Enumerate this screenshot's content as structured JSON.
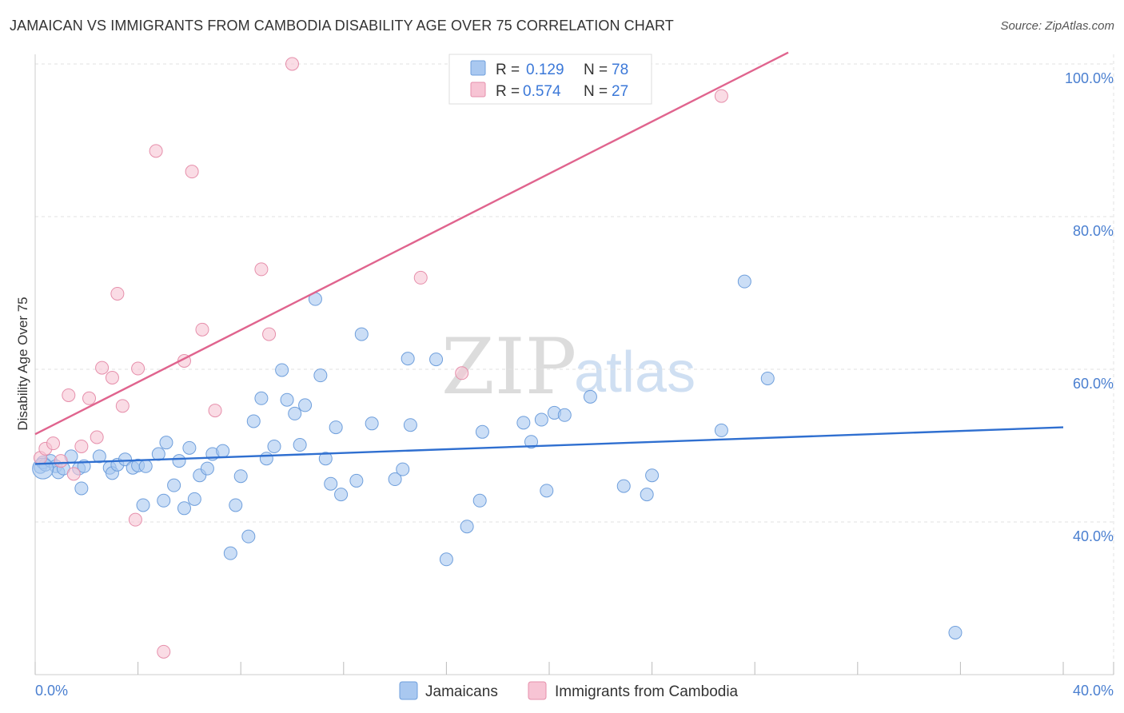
{
  "chart_data": {
    "type": "scatter",
    "title": "JAMAICAN VS IMMIGRANTS FROM CAMBODIA DISABILITY AGE OVER 75 CORRELATION CHART",
    "source": "Source: ZipAtlas.com",
    "xlabel": "",
    "ylabel": "Disability Age Over 75",
    "xlim": [
      0,
      40
    ],
    "ylim": [
      20,
      104
    ],
    "x_tick_labels": {
      "left": "0.0%",
      "right": "40.0%"
    },
    "y_ticks": [
      {
        "value": 40,
        "label": "40.0%"
      },
      {
        "value": 60,
        "label": "60.0%"
      },
      {
        "value": 80,
        "label": "80.0%"
      },
      {
        "value": 100,
        "label": "100.0%"
      }
    ],
    "grid": true,
    "watermark": {
      "part1": "ZIP",
      "part2": "atlas"
    },
    "legend": {
      "rows": [
        {
          "r_label": "R =",
          "r_value": "0.129",
          "n_label": "N =",
          "n_value": "78"
        },
        {
          "r_label": "R =",
          "r_value": "0.574",
          "n_label": "N =",
          "n_value": "27"
        }
      ]
    },
    "series": [
      {
        "name": "Jamaicans",
        "color": "#a9c8f0",
        "stroke": "#6f9fdc",
        "line_color": "#2f6fd0",
        "trend": {
          "x0": 0,
          "y0": 47.6,
          "x1": 40,
          "y1": 52.4
        },
        "points": [
          [
            0.2,
            47.2
          ],
          [
            0.3,
            47.8
          ],
          [
            0.4,
            47.5
          ],
          [
            0.6,
            48.0
          ],
          [
            0.8,
            47.3
          ],
          [
            0.9,
            46.5
          ],
          [
            1.1,
            47.0
          ],
          [
            1.4,
            48.6
          ],
          [
            1.7,
            47.0
          ],
          [
            1.9,
            47.3
          ],
          [
            1.8,
            44.4
          ],
          [
            2.5,
            48.6
          ],
          [
            2.9,
            47.1
          ],
          [
            3.0,
            46.4
          ],
          [
            3.2,
            47.5
          ],
          [
            3.5,
            48.2
          ],
          [
            3.8,
            47.1
          ],
          [
            4.0,
            47.4
          ],
          [
            4.3,
            47.3
          ],
          [
            4.2,
            42.2
          ],
          [
            4.8,
            48.9
          ],
          [
            5.0,
            42.8
          ],
          [
            5.1,
            50.4
          ],
          [
            5.4,
            44.8
          ],
          [
            5.6,
            48.0
          ],
          [
            5.8,
            41.8
          ],
          [
            6.0,
            49.7
          ],
          [
            6.2,
            43.0
          ],
          [
            6.4,
            46.1
          ],
          [
            6.7,
            47.0
          ],
          [
            6.9,
            48.9
          ],
          [
            7.3,
            49.3
          ],
          [
            7.6,
            35.9
          ],
          [
            7.8,
            42.2
          ],
          [
            8.0,
            46.0
          ],
          [
            8.3,
            38.1
          ],
          [
            8.5,
            53.2
          ],
          [
            8.8,
            56.2
          ],
          [
            9.0,
            48.3
          ],
          [
            9.3,
            49.9
          ],
          [
            9.6,
            59.9
          ],
          [
            9.8,
            56.0
          ],
          [
            10.1,
            54.2
          ],
          [
            10.3,
            50.1
          ],
          [
            10.5,
            55.3
          ],
          [
            10.9,
            69.2
          ],
          [
            11.1,
            59.2
          ],
          [
            11.3,
            48.3
          ],
          [
            11.5,
            45.0
          ],
          [
            11.7,
            52.4
          ],
          [
            11.9,
            43.6
          ],
          [
            12.5,
            45.4
          ],
          [
            12.7,
            64.6
          ],
          [
            13.1,
            52.9
          ],
          [
            14.0,
            45.6
          ],
          [
            14.3,
            46.9
          ],
          [
            14.5,
            61.4
          ],
          [
            14.6,
            52.7
          ],
          [
            15.6,
            61.3
          ],
          [
            16.0,
            35.1
          ],
          [
            16.8,
            39.4
          ],
          [
            17.3,
            42.8
          ],
          [
            17.4,
            51.8
          ],
          [
            19.0,
            53.0
          ],
          [
            19.3,
            50.5
          ],
          [
            19.7,
            53.4
          ],
          [
            19.9,
            44.1
          ],
          [
            20.2,
            54.3
          ],
          [
            20.6,
            54.0
          ],
          [
            21.6,
            56.4
          ],
          [
            22.9,
            44.7
          ],
          [
            23.8,
            43.6
          ],
          [
            24.0,
            46.1
          ],
          [
            26.7,
            52.0
          ],
          [
            27.6,
            71.5
          ],
          [
            28.5,
            58.8
          ],
          [
            35.8,
            25.5
          ],
          [
            0.3,
            47.0
          ]
        ]
      },
      {
        "name": "Immigrants from Cambodia",
        "color": "#f7c4d4",
        "stroke": "#e68fab",
        "line_color": "#e0648e",
        "trend": {
          "x0": 0,
          "y0": 51.5,
          "x1": 29.3,
          "y1": 101.5
        },
        "points": [
          [
            0.2,
            48.4
          ],
          [
            0.4,
            49.6
          ],
          [
            0.7,
            50.3
          ],
          [
            1.0,
            48.0
          ],
          [
            1.3,
            56.6
          ],
          [
            1.5,
            46.3
          ],
          [
            1.8,
            49.9
          ],
          [
            2.1,
            56.2
          ],
          [
            2.4,
            51.1
          ],
          [
            2.6,
            60.2
          ],
          [
            3.0,
            58.9
          ],
          [
            3.2,
            69.9
          ],
          [
            3.4,
            55.2
          ],
          [
            3.9,
            40.3
          ],
          [
            4.0,
            60.1
          ],
          [
            4.7,
            88.6
          ],
          [
            5.0,
            23.0
          ],
          [
            5.8,
            61.1
          ],
          [
            6.1,
            85.9
          ],
          [
            6.5,
            65.2
          ],
          [
            7.0,
            54.6
          ],
          [
            8.8,
            73.1
          ],
          [
            9.1,
            64.6
          ],
          [
            10.0,
            100.0
          ],
          [
            15.0,
            72.0
          ],
          [
            16.6,
            59.5
          ],
          [
            26.7,
            95.8
          ]
        ]
      }
    ]
  }
}
